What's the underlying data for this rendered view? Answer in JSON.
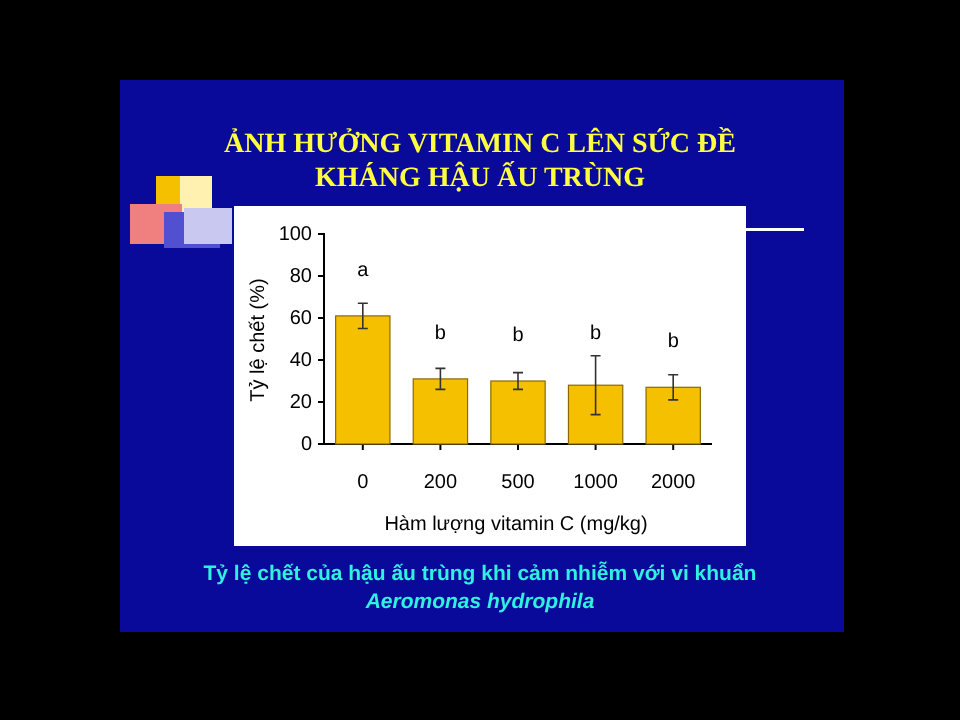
{
  "chart_data": {
    "type": "bar",
    "title": "ẢNH HƯỞNG VITAMIN C LÊN SỨC ĐỀ KHÁNG HẬU ẤU TRÙNG",
    "xlabel": "Hàm lượng vitamin C (mg/kg)",
    "ylabel": "Tỷ lệ chết (%)",
    "categories": [
      "0",
      "200",
      "500",
      "1000",
      "2000"
    ],
    "values": [
      61,
      31,
      30,
      28,
      27
    ],
    "errors": [
      6,
      5,
      4,
      14,
      6
    ],
    "color": "#f5c000",
    "ylim": [
      0,
      100
    ],
    "yticks": [
      0,
      20,
      40,
      60,
      80,
      100
    ],
    "grid": false,
    "annotations": [
      "a",
      "b",
      "b",
      "b",
      "b",
      "Tỷ  lệ chết của hậu ấu trùng khi cảm nhiễm với vi khuẩn",
      "Aeromonas hydrophila"
    ]
  }
}
